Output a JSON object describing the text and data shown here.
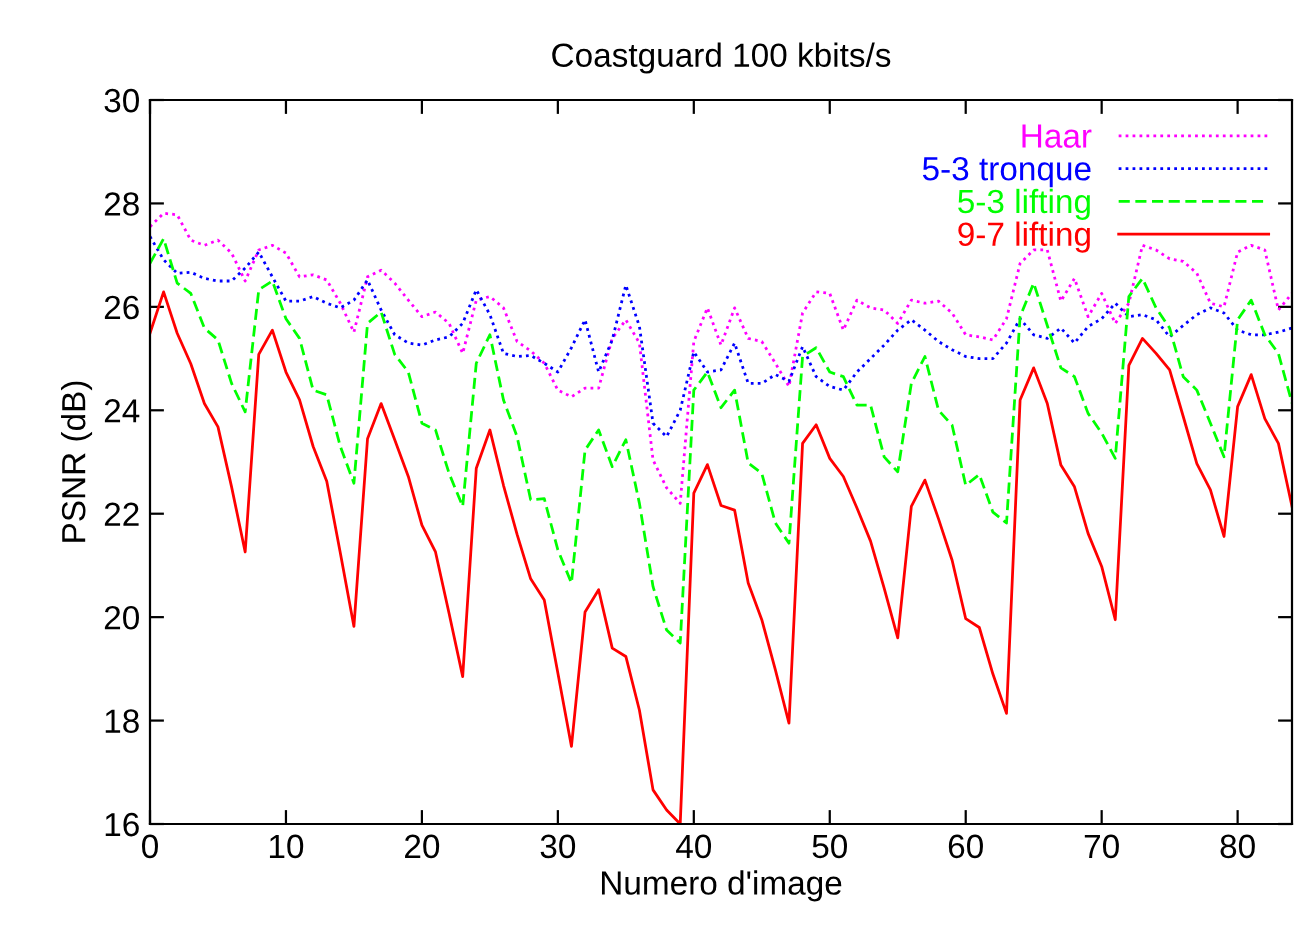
{
  "chart_data": {
    "type": "line",
    "title": "Coastguard 100 kbits/s",
    "xlabel": "Numero d'image",
    "ylabel": "PSNR (dB)",
    "x": [
      0,
      1,
      2,
      3,
      4,
      5,
      6,
      7,
      8,
      9,
      10,
      11,
      12,
      13,
      14,
      15,
      16,
      17,
      18,
      19,
      20,
      21,
      22,
      23,
      24,
      25,
      26,
      27,
      28,
      29,
      30,
      31,
      32,
      33,
      34,
      35,
      36,
      37,
      38,
      39,
      40,
      41,
      42,
      43,
      44,
      45,
      46,
      47,
      48,
      49,
      50,
      51,
      52,
      53,
      54,
      55,
      56,
      57,
      58,
      59,
      60,
      61,
      62,
      63,
      64,
      65,
      66,
      67,
      68,
      69,
      70,
      71,
      72,
      73,
      74,
      75,
      76,
      77,
      78,
      79,
      80,
      81,
      82,
      83,
      84
    ],
    "series": [
      {
        "name": "Haar",
        "color": "#ff00ff",
        "line_style": "dotted",
        "values": [
          27.55,
          27.81,
          27.78,
          27.29,
          27.19,
          27.29,
          27.04,
          26.5,
          27.1,
          27.19,
          27.04,
          26.58,
          26.62,
          26.52,
          26.07,
          25.51,
          26.58,
          26.71,
          26.46,
          26.13,
          25.81,
          25.9,
          25.68,
          25.1,
          26.13,
          26.2,
          25.98,
          25.33,
          25.15,
          24.91,
          24.39,
          24.26,
          24.43,
          24.43,
          25.39,
          25.75,
          25.3,
          23.04,
          22.5,
          22.2,
          25.33,
          25.98,
          25.26,
          25.98,
          25.39,
          25.33,
          24.91,
          24.46,
          25.88,
          26.29,
          26.26,
          25.55,
          26.13,
          25.98,
          25.94,
          25.68,
          26.13,
          26.07,
          26.11,
          25.88,
          25.46,
          25.42,
          25.36,
          25.77,
          26.84,
          27.1,
          27.1,
          26.11,
          26.55,
          25.81,
          26.26,
          25.68,
          26.07,
          27.19,
          27.1,
          26.93,
          26.88,
          26.65,
          26.07,
          26.0,
          27.06,
          27.19,
          27.1,
          25.94,
          26.26
        ]
      },
      {
        "name": "5-3 tronque",
        "color": "#0000ff",
        "line_style": "dotted",
        "values": [
          27.36,
          26.91,
          26.65,
          26.67,
          26.55,
          26.5,
          26.5,
          26.75,
          27.06,
          26.58,
          26.11,
          26.11,
          26.2,
          26.07,
          25.98,
          26.13,
          26.52,
          25.94,
          25.46,
          25.3,
          25.26,
          25.36,
          25.42,
          25.68,
          26.33,
          25.85,
          25.1,
          25.04,
          25.06,
          24.91,
          24.74,
          25.21,
          25.75,
          24.74,
          25.36,
          26.42,
          25.62,
          23.75,
          23.49,
          24.0,
          25.13,
          24.74,
          24.78,
          25.3,
          24.52,
          24.52,
          24.69,
          24.56,
          25.23,
          24.65,
          24.46,
          24.39,
          24.74,
          25.0,
          25.26,
          25.55,
          25.75,
          25.55,
          25.33,
          25.17,
          25.04,
          25.0,
          25.0,
          25.3,
          25.77,
          25.46,
          25.39,
          25.59,
          25.3,
          25.62,
          25.77,
          26.07,
          25.81,
          25.85,
          25.75,
          25.42,
          25.64,
          25.85,
          25.98,
          25.88,
          25.55,
          25.46,
          25.46,
          25.51,
          25.59
        ]
      },
      {
        "name": "5-3 lifting",
        "color": "#00ff00",
        "line_style": "dashed",
        "values": [
          26.84,
          27.32,
          26.46,
          26.26,
          25.59,
          25.36,
          24.52,
          23.97,
          26.33,
          26.5,
          25.77,
          25.39,
          24.39,
          24.3,
          23.3,
          22.59,
          25.68,
          25.9,
          25.08,
          24.74,
          23.75,
          23.62,
          22.78,
          22.14,
          24.91,
          25.46,
          24.2,
          23.49,
          22.27,
          22.29,
          21.3,
          20.66,
          23.23,
          23.62,
          22.91,
          23.43,
          22.2,
          20.59,
          19.75,
          19.5,
          24.39,
          24.74,
          24.05,
          24.39,
          22.98,
          22.78,
          21.82,
          21.43,
          25.04,
          25.21,
          24.74,
          24.65,
          24.1,
          24.1,
          23.1,
          22.81,
          24.52,
          25.04,
          24.0,
          23.71,
          22.55,
          22.76,
          22.03,
          21.82,
          25.81,
          26.46,
          25.64,
          24.82,
          24.65,
          23.94,
          23.56,
          23.07,
          26.2,
          26.55,
          25.98,
          25.59,
          24.65,
          24.39,
          23.75,
          23.1,
          25.75,
          26.13,
          25.46,
          25.1,
          24.14
        ]
      },
      {
        "name": "9-7 lifting",
        "color": "#ff0000",
        "line_style": "solid",
        "values": [
          25.49,
          26.29,
          25.49,
          24.9,
          24.13,
          23.68,
          22.52,
          21.26,
          25.08,
          25.55,
          24.74,
          24.2,
          23.3,
          22.63,
          21.24,
          19.82,
          23.45,
          24.13,
          23.43,
          22.72,
          21.78,
          21.26,
          20.07,
          18.85,
          22.88,
          23.62,
          22.55,
          21.6,
          20.74,
          20.33,
          18.92,
          17.5,
          20.1,
          20.53,
          19.4,
          19.24,
          18.2,
          16.66,
          16.27,
          16.0,
          22.4,
          22.95,
          22.16,
          22.07,
          20.66,
          19.95,
          18.98,
          17.95,
          23.36,
          23.72,
          23.07,
          22.72,
          22.11,
          21.47,
          20.56,
          19.6,
          22.14,
          22.65,
          21.9,
          21.1,
          19.97,
          19.8,
          18.9,
          18.14,
          24.2,
          24.82,
          24.13,
          22.94,
          22.52,
          21.62,
          20.98,
          19.95,
          24.87,
          25.39,
          25.1,
          24.78,
          23.88,
          22.97,
          22.46,
          21.56,
          24.07,
          24.69,
          23.84,
          23.36,
          22.14
        ]
      }
    ],
    "xlim": [
      0,
      84
    ],
    "ylim": [
      16,
      30
    ],
    "xticks": [
      0,
      10,
      20,
      30,
      40,
      50,
      60,
      70,
      80
    ],
    "yticks": [
      16,
      18,
      20,
      22,
      24,
      26,
      28,
      30
    ],
    "grid": false,
    "legend": "top right",
    "marker": "none"
  }
}
